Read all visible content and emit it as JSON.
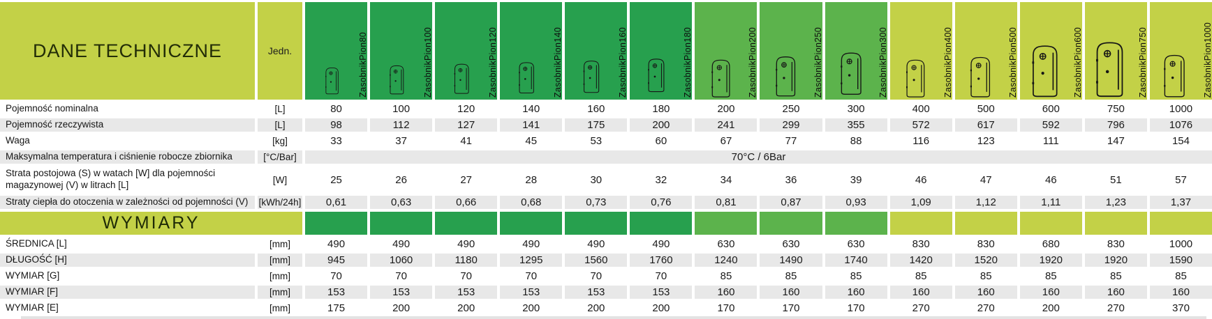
{
  "table": {
    "title": "DANE TECHNICZNE",
    "unit_header": "Jedn.",
    "section_title": "WYMIARY",
    "merged_value_note": "70°C / 6Bar"
  },
  "colors": {
    "dark_green": "#27a04e",
    "mid_green": "#5cb34c",
    "yellow_green": "#c3d147",
    "row_stripe_gray": "#e8e8e8"
  },
  "header": {
    "columns": [
      {
        "label": "ZasobnikPion80",
        "group": "dark"
      },
      {
        "label": "ZasobnikPion100",
        "group": "dark"
      },
      {
        "label": "ZasobnikPion120",
        "group": "dark"
      },
      {
        "label": "ZasobnikPion140",
        "group": "dark"
      },
      {
        "label": "ZasobnikPion160",
        "group": "dark"
      },
      {
        "label": "ZasobnikPion180",
        "group": "dark"
      },
      {
        "label": "ZasobnikPion200",
        "group": "mid"
      },
      {
        "label": "ZasobnikPion250",
        "group": "mid"
      },
      {
        "label": "ZasobnikPion300",
        "group": "mid"
      },
      {
        "label": "ZasobnikPion400",
        "group": "light"
      },
      {
        "label": "ZasobnikPion500",
        "group": "light"
      },
      {
        "label": "ZasobnikPion600",
        "group": "light"
      },
      {
        "label": "ZasobnikPion750",
        "group": "light"
      },
      {
        "label": "ZasobnikPion1000",
        "group": "light"
      }
    ]
  },
  "rows": [
    {
      "label": "Pojemność nominalna",
      "unit": "[L]",
      "values": [
        "80",
        "100",
        "120",
        "140",
        "160",
        "180",
        "200",
        "250",
        "300",
        "400",
        "500",
        "600",
        "750",
        "1000"
      ]
    },
    {
      "label": "Pojemność rzeczywista",
      "unit": "[L]",
      "values": [
        "98",
        "112",
        "127",
        "141",
        "175",
        "200",
        "241",
        "299",
        "355",
        "572",
        "617",
        "592",
        "796",
        "1076"
      ]
    },
    {
      "label": "Waga",
      "unit": "[kg]",
      "values": [
        "33",
        "37",
        "41",
        "45",
        "53",
        "60",
        "67",
        "77",
        "88",
        "116",
        "123",
        "111",
        "147",
        "154"
      ]
    },
    {
      "label": "Maksymalna temperatura i ciśnienie robocze zbiornika",
      "unit": "[°C/Bar]",
      "merged_value": "70°C / 6Bar"
    },
    {
      "label": "Strata postojowa (S) w watach [W] dla pojemności magazynowej (V) w litrach [L]",
      "unit": "[W]",
      "values": [
        "25",
        "26",
        "27",
        "28",
        "30",
        "32",
        "34",
        "36",
        "39",
        "46",
        "47",
        "46",
        "51",
        "57"
      ]
    },
    {
      "label": "Straty ciepła do otoczenia w zależności od pojemności (V)",
      "unit": "[kWh/24h]",
      "values": [
        "0,61",
        "0,63",
        "0,66",
        "0,68",
        "0,73",
        "0,76",
        "0,81",
        "0,87",
        "0,93",
        "1,09",
        "1,12",
        "1,11",
        "1,23",
        "1,37"
      ]
    }
  ],
  "dimension_rows": [
    {
      "label": "ŚREDNICA [L]",
      "unit": "[mm]",
      "values": [
        "490",
        "490",
        "490",
        "490",
        "490",
        "490",
        "630",
        "630",
        "630",
        "830",
        "830",
        "680",
        "830",
        "1000"
      ]
    },
    {
      "label": "DŁUGOŚĆ [H]",
      "unit": "[mm]",
      "values": [
        "945",
        "1060",
        "1180",
        "1295",
        "1560",
        "1760",
        "1240",
        "1490",
        "1740",
        "1420",
        "1520",
        "1920",
        "1920",
        "1590"
      ]
    },
    {
      "label": "WYMIAR [G]",
      "unit": "[mm]",
      "values": [
        "70",
        "70",
        "70",
        "70",
        "70",
        "70",
        "85",
        "85",
        "85",
        "85",
        "85",
        "85",
        "85",
        "85"
      ]
    },
    {
      "label": "WYMIAR [F]",
      "unit": "[mm]",
      "values": [
        "153",
        "153",
        "153",
        "153",
        "153",
        "153",
        "160",
        "160",
        "160",
        "160",
        "160",
        "160",
        "160",
        "160"
      ]
    },
    {
      "label": "WYMIAR [E]",
      "unit": "[mm]",
      "values": [
        "175",
        "200",
        "200",
        "200",
        "200",
        "200",
        "170",
        "170",
        "170",
        "270",
        "270",
        "200",
        "270",
        "370"
      ]
    }
  ]
}
